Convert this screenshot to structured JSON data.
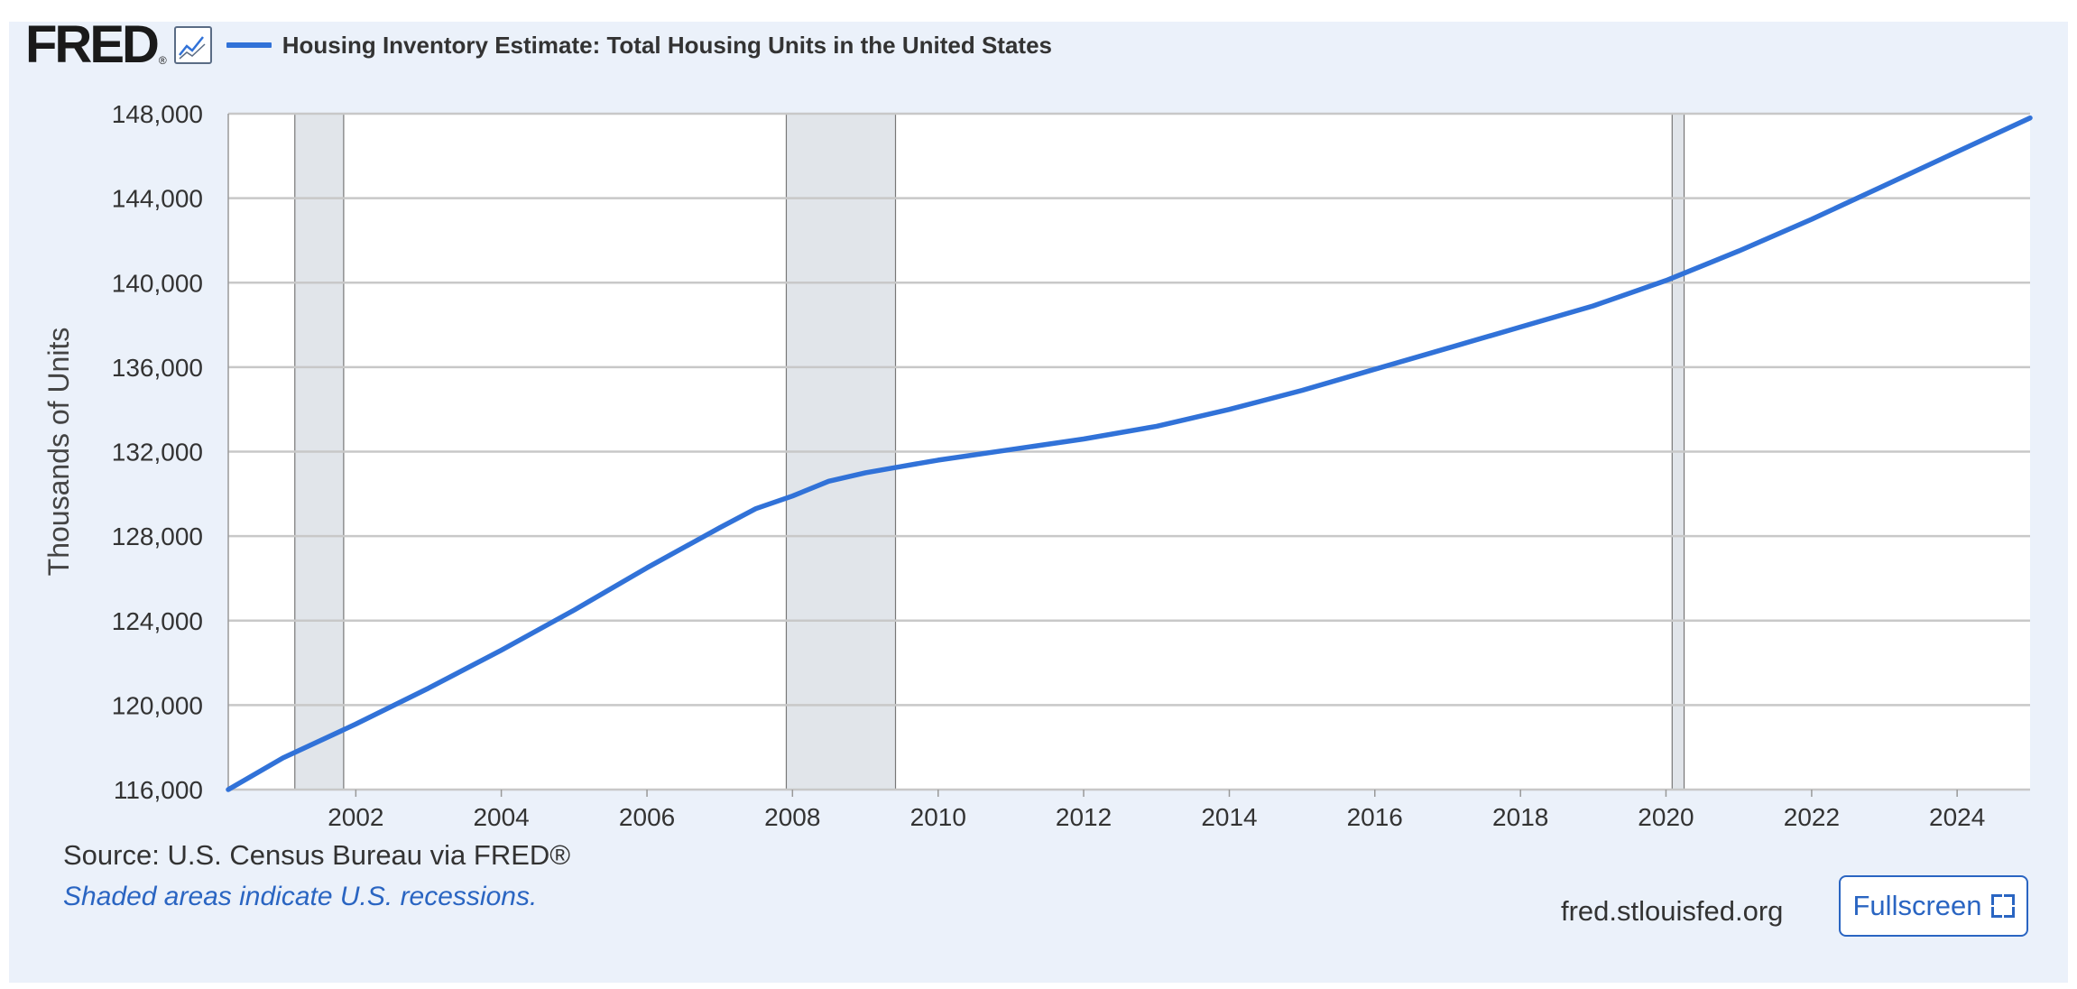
{
  "header": {
    "logo_text": "FRED",
    "logo_mark": "®",
    "logo_icon": "chart-line-icon",
    "legend_label": "Housing Inventory Estimate: Total Housing Units in the United States"
  },
  "footer": {
    "source": "Source: U.S. Census Bureau via FRED®",
    "note": "Shaded areas indicate U.S. recessions.",
    "site": "fred.stlouisfed.org",
    "fullscreen_label": "Fullscreen",
    "fullscreen_icon": "expand-icon"
  },
  "colors": {
    "series": "#3172d8",
    "background": "#ebf1fa",
    "recession": "#e1e5ea",
    "grid": "#c8c8c8"
  },
  "chart_data": {
    "type": "line",
    "title": "",
    "xlabel": "",
    "ylabel": "Thousands of Units",
    "xlim": [
      "2000-04-01",
      "2025-01-01"
    ],
    "ylim": [
      116000,
      148000
    ],
    "y_ticks": [
      116000,
      120000,
      124000,
      128000,
      132000,
      136000,
      140000,
      144000,
      148000
    ],
    "y_tick_labels": [
      "116,000",
      "120,000",
      "124,000",
      "128,000",
      "132,000",
      "136,000",
      "140,000",
      "144,000",
      "148,000"
    ],
    "x_ticks": [
      "2002-01-01",
      "2004-01-01",
      "2006-01-01",
      "2008-01-01",
      "2010-01-01",
      "2012-01-01",
      "2014-01-01",
      "2016-01-01",
      "2018-01-01",
      "2020-01-01",
      "2022-01-01",
      "2024-01-01"
    ],
    "x_tick_labels": [
      "2002",
      "2004",
      "2006",
      "2008",
      "2010",
      "2012",
      "2014",
      "2016",
      "2018",
      "2020",
      "2022",
      "2024"
    ],
    "grid": true,
    "recessions": [
      {
        "start": "2001-03-01",
        "end": "2001-11-01"
      },
      {
        "start": "2007-12-01",
        "end": "2009-06-01"
      },
      {
        "start": "2020-02-01",
        "end": "2020-04-01"
      }
    ],
    "series": [
      {
        "name": "Housing Inventory Estimate: Total Housing Units in the United States",
        "x": [
          "2000-04-01",
          "2001-01-01",
          "2002-01-01",
          "2003-01-01",
          "2004-01-01",
          "2005-01-01",
          "2006-01-01",
          "2007-01-01",
          "2007-07-01",
          "2008-01-01",
          "2008-07-01",
          "2009-01-01",
          "2009-07-01",
          "2010-01-01",
          "2011-01-01",
          "2012-01-01",
          "2013-01-01",
          "2014-01-01",
          "2015-01-01",
          "2016-01-01",
          "2017-01-01",
          "2018-01-01",
          "2019-01-01",
          "2020-01-01",
          "2021-01-01",
          "2022-01-01",
          "2023-01-01",
          "2024-01-01",
          "2025-01-01"
        ],
        "y": [
          116000,
          117500,
          119100,
          120800,
          122600,
          124500,
          126500,
          128400,
          129300,
          129900,
          130600,
          131000,
          131300,
          131600,
          132100,
          132600,
          133200,
          134000,
          134900,
          135900,
          136900,
          137900,
          138900,
          140100,
          141500,
          143000,
          144600,
          146200,
          147800
        ]
      }
    ]
  }
}
